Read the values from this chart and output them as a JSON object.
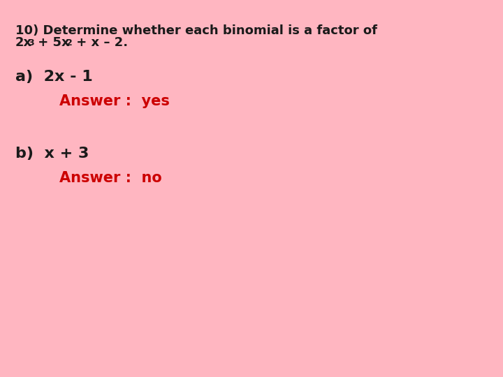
{
  "background_color": "#ffb6c1",
  "text_color_black": "#1a1a1a",
  "text_color_red": "#cc0000",
  "title_line1": "10) Determine whether each binomial is a factor of",
  "title_line2_main": "2x",
  "title_line2_rest": " + 5x",
  "title_line2_end": " + x – 2.",
  "part_a_expr": "a)  2x - 1",
  "part_a_answer": "Answer :  yes",
  "part_b_expr": "b)  x + 3",
  "part_b_answer": "Answer :  no",
  "font_size_title": 13,
  "font_size_parts": 16,
  "font_size_answer": 15,
  "font_size_super": 9
}
